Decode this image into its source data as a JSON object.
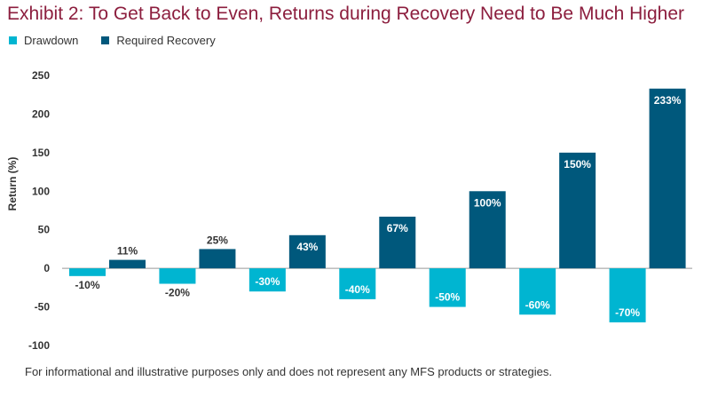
{
  "title": "Exhibit 2: To Get Back to Even, Returns during Recovery Need to Be Much Higher",
  "legend": [
    {
      "label": "Drawdown",
      "color": "#00b5d1"
    },
    {
      "label": "Required Recovery",
      "color": "#00587c"
    }
  ],
  "footnote": "For informational and illustrative purposes only and does not represent any MFS products or strategies.",
  "chart_data": {
    "type": "bar",
    "ylabel": "Return (%)",
    "ylim": [
      -100,
      250
    ],
    "yticks": [
      -100,
      -50,
      0,
      50,
      100,
      150,
      200,
      250
    ],
    "grid": false,
    "legend_position": "top-left",
    "series": [
      {
        "name": "Drawdown",
        "color": "#00b5d1",
        "values": [
          -10,
          -20,
          -30,
          -40,
          -50,
          -60,
          -70
        ],
        "labels": [
          "-10%",
          "-20%",
          "-30%",
          "-40%",
          "-50%",
          "-60%",
          "-70%"
        ]
      },
      {
        "name": "Required Recovery",
        "color": "#00587c",
        "values": [
          11,
          25,
          43,
          67,
          100,
          150,
          233
        ],
        "labels": [
          "11%",
          "25%",
          "43%",
          "67%",
          "100%",
          "150%",
          "233%"
        ]
      }
    ]
  }
}
